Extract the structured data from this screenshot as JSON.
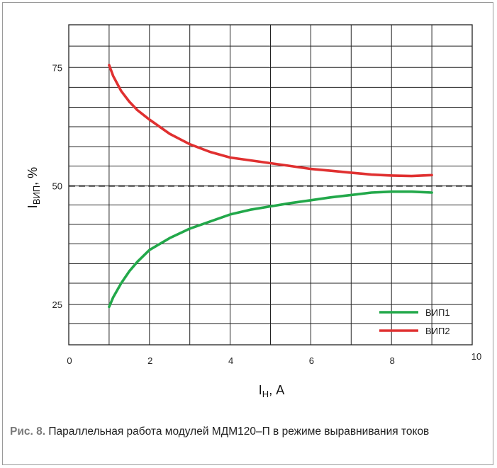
{
  "chart_data": {
    "type": "line",
    "xlabel": "I",
    "xlabel_sub": "Н",
    "xlabel_unit": ", А",
    "ylabel": "I",
    "ylabel_sub": "ВИП",
    "ylabel_unit": ", %",
    "xlim": [
      0,
      10
    ],
    "ylim": [
      16.5,
      84
    ],
    "x_ticks": [
      0,
      2,
      4,
      6,
      8,
      10
    ],
    "x_tick_labels": [
      "0",
      "2",
      "4",
      "6",
      "8",
      "10"
    ],
    "y_ticks": [
      25,
      50,
      75
    ],
    "y_tick_labels": [
      "25",
      "50",
      "75"
    ],
    "grid_x": [
      0,
      1,
      2,
      3,
      4,
      5,
      6,
      7,
      8,
      9,
      10
    ],
    "grid_y": [
      16.5,
      21,
      25,
      29.5,
      33.6,
      37.8,
      41.9,
      46,
      50,
      54.2,
      58.3,
      62.5,
      66.6,
      70.8,
      75,
      79.5,
      84
    ],
    "reference_line": {
      "y": 50,
      "style": "dashed"
    },
    "grid": true,
    "legend_position": "bottom-right",
    "series": [
      {
        "name": "ВИП1",
        "color": "#22a84a",
        "x": [
          1.0,
          1.1,
          1.3,
          1.5,
          1.7,
          2.0,
          2.5,
          3.0,
          3.5,
          4.0,
          4.5,
          5.0,
          5.5,
          6.0,
          6.5,
          7.0,
          7.5,
          8.0,
          8.5,
          9.0
        ],
        "y": [
          24.5,
          26.5,
          29.5,
          32.0,
          34.0,
          36.5,
          39.0,
          41.0,
          42.5,
          44.0,
          45.0,
          45.7,
          46.4,
          47.0,
          47.6,
          48.1,
          48.6,
          48.8,
          48.8,
          48.6
        ]
      },
      {
        "name": "ВИП2",
        "color": "#e03030",
        "x": [
          1.0,
          1.1,
          1.3,
          1.5,
          1.7,
          2.0,
          2.5,
          3.0,
          3.5,
          4.0,
          4.5,
          5.0,
          5.5,
          6.0,
          6.5,
          7.0,
          7.5,
          8.0,
          8.5,
          9.0
        ],
        "y": [
          75.5,
          73.2,
          70.0,
          67.8,
          66.0,
          64.0,
          61.0,
          58.8,
          57.2,
          56.0,
          55.4,
          54.8,
          54.2,
          53.6,
          53.2,
          52.8,
          52.4,
          52.2,
          52.1,
          52.3
        ]
      }
    ]
  },
  "caption": {
    "label": "Рис. 8.",
    "text": "Параллельная работа модулей МДМ120–П в режиме выравнивания токов"
  }
}
